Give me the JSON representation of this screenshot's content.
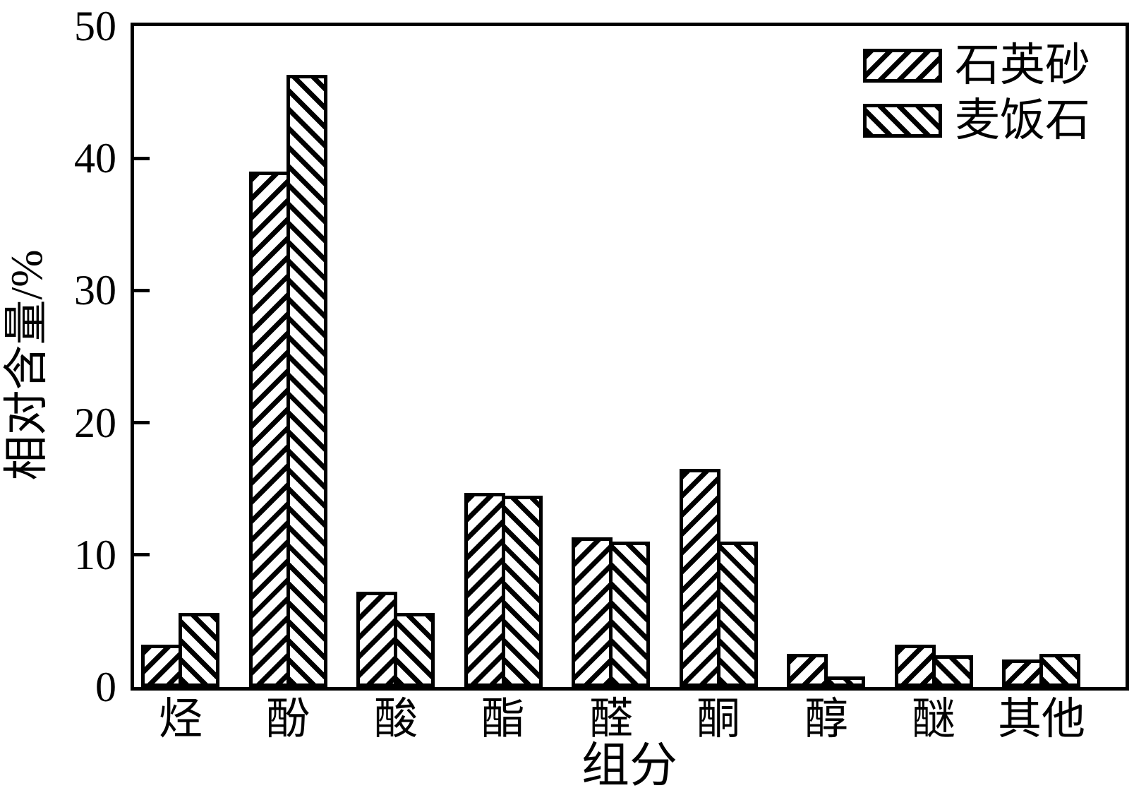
{
  "chart_data": {
    "type": "bar",
    "title": "",
    "xlabel": "组分",
    "ylabel": "相对含量/%",
    "ylim": [
      0,
      50
    ],
    "yticks": [
      0,
      10,
      20,
      30,
      40,
      50
    ],
    "grid": false,
    "legend_position": "top-right-inside",
    "categories": [
      "烃",
      "酚",
      "酸",
      "酯",
      "醛",
      "酮",
      "醇",
      "醚",
      "其他"
    ],
    "category_keys": [
      "hydrocarbons",
      "phenols",
      "acids",
      "esters",
      "aldehydes",
      "ketones",
      "alcohols",
      "ethers",
      "others"
    ],
    "series": [
      {
        "name": "石英砂",
        "key": "quartz-sand",
        "hatch": "forward-diagonal",
        "values": [
          3.2,
          39.0,
          7.2,
          14.7,
          11.3,
          16.5,
          2.5,
          3.2,
          2.1
        ]
      },
      {
        "name": "麦饭石",
        "key": "maifan-stone",
        "hatch": "backward-diagonal",
        "values": [
          5.6,
          46.3,
          5.6,
          14.5,
          11.0,
          11.0,
          0.8,
          2.4,
          2.5
        ]
      }
    ],
    "colors": {
      "foreground": "#000000",
      "background": "#ffffff"
    }
  }
}
